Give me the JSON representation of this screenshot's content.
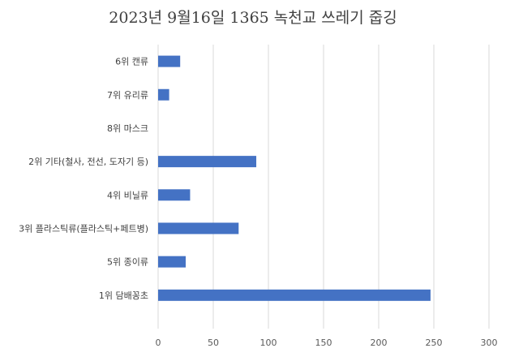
{
  "chart_data": {
    "type": "bar",
    "orientation": "horizontal",
    "title": "2023년 9월16일 1365 녹천교 쓰레기 줍깅",
    "categories": [
      "6위 캔류",
      "7위 유리류",
      "8위 마스크",
      "2위 기타(철사, 전선, 도자기 등)",
      "4위 비닐류",
      "3위 플라스틱류(플라스틱+페트병)",
      "5위 종이류",
      "1위 담배꽁초"
    ],
    "values": [
      20,
      10,
      0,
      89,
      29,
      73,
      25,
      247
    ],
    "xlim": [
      0,
      300
    ],
    "xticks": [
      0,
      50,
      100,
      150,
      200,
      250,
      300
    ],
    "grid": "vertical",
    "legend": "none",
    "bar_color": "#4472c4"
  }
}
